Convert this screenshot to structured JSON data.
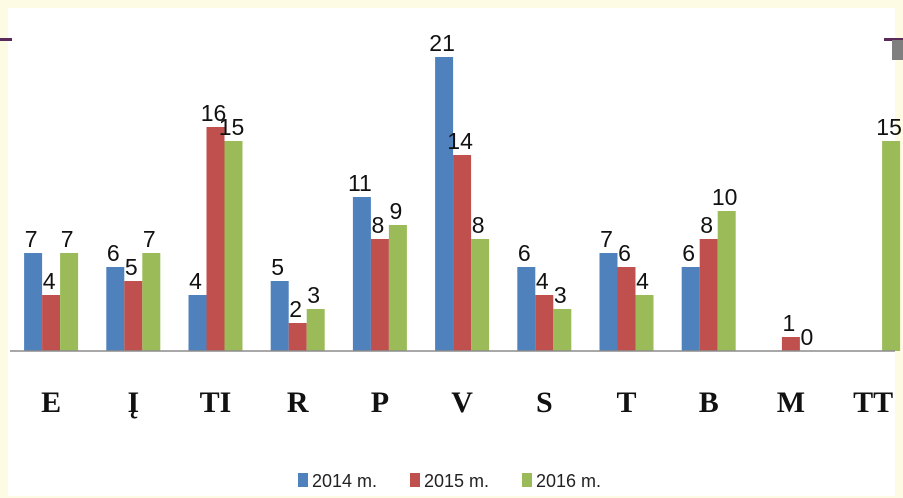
{
  "chart_data": {
    "type": "bar",
    "title": "",
    "xlabel": "",
    "ylabel": "",
    "categories": [
      "E",
      "Į",
      "TI",
      "R",
      "P",
      "V",
      "S",
      "T",
      "B",
      "M",
      "TT"
    ],
    "ylim": [
      0,
      22
    ],
    "grid": false,
    "legend_position": "bottom",
    "series": [
      {
        "name": "2014 m.",
        "color": "#4f81bd",
        "values": [
          7,
          6,
          4,
          5,
          11,
          21,
          6,
          7,
          6,
          null,
          null
        ],
        "labels": [
          "7",
          "6",
          "4",
          "5",
          "11",
          "21",
          "6",
          "7",
          "6",
          "",
          ""
        ]
      },
      {
        "name": "2015 m.",
        "color": "#c0504d",
        "values": [
          4,
          5,
          16,
          2,
          8,
          14,
          4,
          6,
          8,
          1,
          null
        ],
        "labels": [
          "4",
          "5",
          "16",
          "2",
          "8",
          "14",
          "4",
          "6",
          "8",
          "1",
          ""
        ]
      },
      {
        "name": "2016 m.",
        "color": "#9bbb59",
        "values": [
          7,
          7,
          15,
          3,
          9,
          8,
          3,
          4,
          10,
          0,
          15
        ],
        "labels": [
          "7",
          "7",
          "15",
          "3",
          "9",
          "8",
          "3",
          "4",
          "10",
          "0",
          "15"
        ]
      }
    ]
  }
}
